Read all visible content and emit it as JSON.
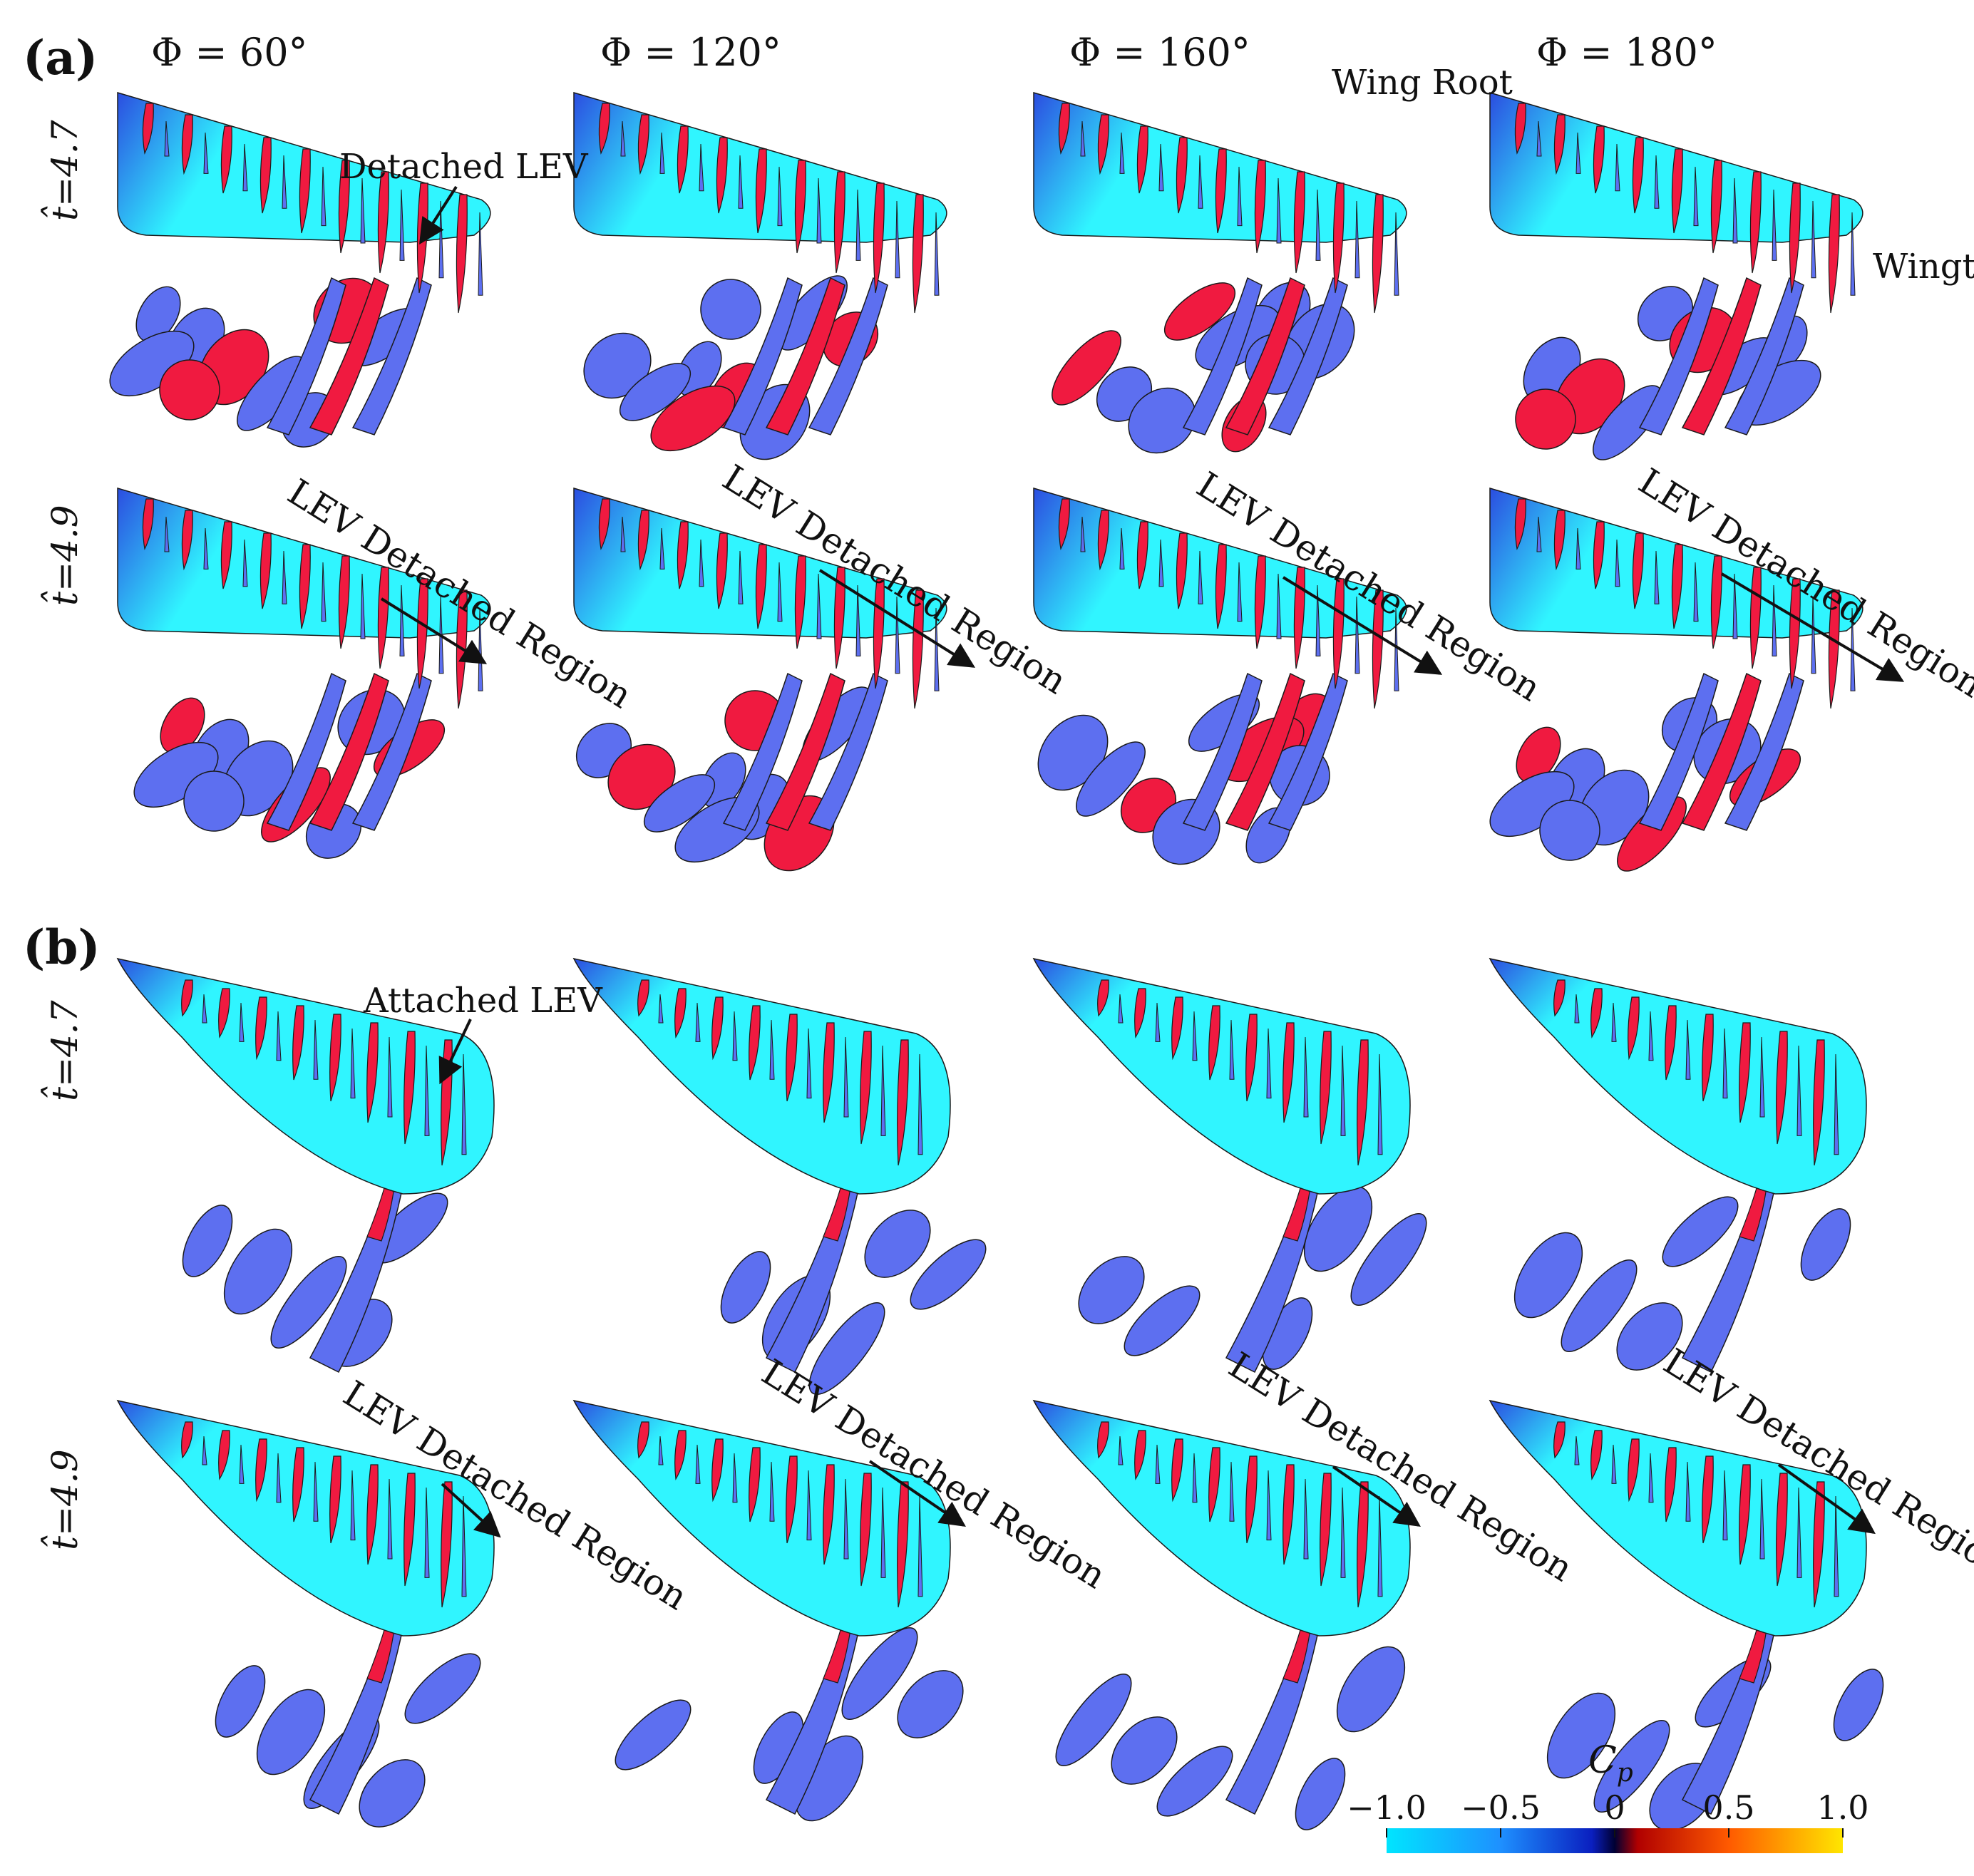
{
  "panels": {
    "a": {
      "label": "(a)"
    },
    "b": {
      "label": "(b)"
    }
  },
  "columns": [
    "Φ = 60°",
    "Φ = 120°",
    "Φ = 160°",
    "Φ = 180°"
  ],
  "row_labels": {
    "a1": "t̂=4.7",
    "a2": "t̂=4.9",
    "b1": "t̂=4.7",
    "b2": "t̂=4.9"
  },
  "annotations": {
    "wing_root": "Wing Root",
    "wingtip": "Wingti",
    "detached_lev": "Detached LEV",
    "attached_lev": "Attached LEV",
    "lev_detached_region": "LEV Detached Region"
  },
  "colorbar": {
    "title": "C",
    "title_sub": "p",
    "ticks": [
      "−1.0",
      "−0.5",
      "0",
      "0.5",
      "1.0"
    ],
    "colors": [
      "#00e5ff",
      "#1e90ff",
      "#0a1fbf",
      "#000033",
      "#d40000",
      "#ff5a00",
      "#ffe600"
    ]
  },
  "colors": {
    "wing": "#30f5ff",
    "wing_root_dark": "#2b4de0",
    "vortex_positive": "#f01a40",
    "vortex_negative": "#5d6ff0",
    "outline": "#1a1a1a"
  }
}
